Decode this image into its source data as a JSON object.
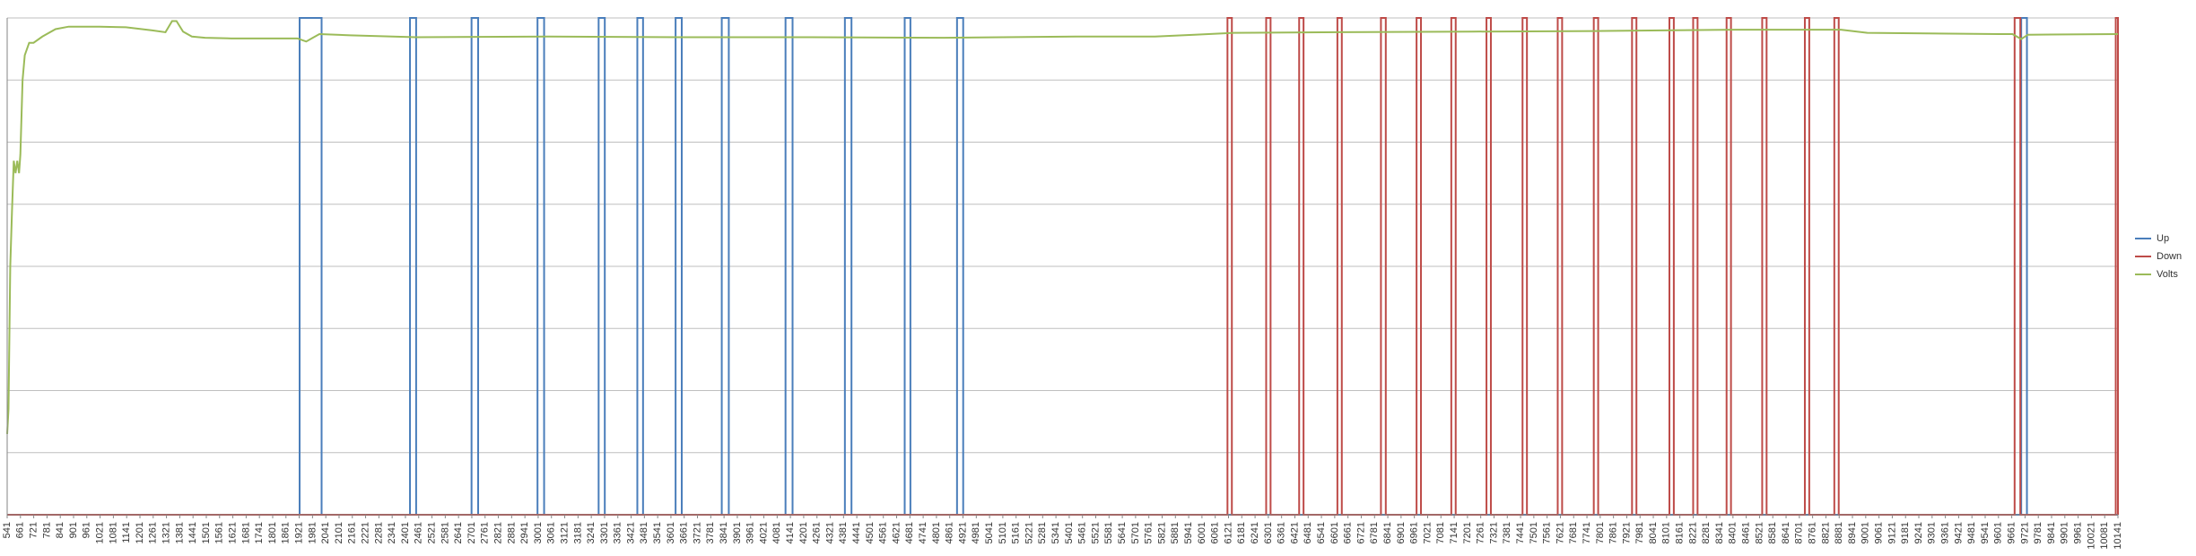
{
  "chart_data": {
    "type": "line",
    "title": "",
    "xlabel": "",
    "ylabel": "",
    "ylim": [
      0,
      8
    ],
    "y_gridlines": 8,
    "grid": true,
    "legend_placement": "right",
    "x_tick_labels": [
      "541",
      "661",
      "721",
      "781",
      "841",
      "901",
      "961",
      "1021",
      "1081",
      "1141",
      "1201",
      "1261",
      "1321",
      "1381",
      "1441",
      "1501",
      "1561",
      "1621",
      "1681",
      "1741",
      "1801",
      "1861",
      "1921",
      "1981",
      "2041",
      "2101",
      "2161",
      "2221",
      "2281",
      "2341",
      "2401",
      "2461",
      "2521",
      "2581",
      "2641",
      "2701",
      "2761",
      "2821",
      "2881",
      "2941",
      "3001",
      "3061",
      "3121",
      "3181",
      "3241",
      "3301",
      "3361",
      "3421",
      "3481",
      "3541",
      "3601",
      "3661",
      "3721",
      "3781",
      "3841",
      "3901",
      "3961",
      "4021",
      "4081",
      "4141",
      "4201",
      "4261",
      "4321",
      "4381",
      "4441",
      "4501",
      "4561",
      "4621",
      "4681",
      "4741",
      "4801",
      "4861",
      "4921",
      "4981",
      "5041",
      "5101",
      "5161",
      "5221",
      "5281",
      "5341",
      "5401",
      "5461",
      "5521",
      "5581",
      "5641",
      "5701",
      "5761",
      "5821",
      "5881",
      "5941",
      "6001",
      "6061",
      "6121",
      "6181",
      "6241",
      "6301",
      "6361",
      "6421",
      "6481",
      "6541",
      "6601",
      "6661",
      "6721",
      "6781",
      "6841",
      "6901",
      "6961",
      "7021",
      "7081",
      "7141",
      "7201",
      "7261",
      "7321",
      "7381",
      "7441",
      "7501",
      "7561",
      "7621",
      "7681",
      "7741",
      "7801",
      "7861",
      "7921",
      "7981",
      "8041",
      "8101",
      "8161",
      "8221",
      "8281",
      "8341",
      "8401",
      "8461",
      "8521",
      "8581",
      "8641",
      "8701",
      "8761",
      "8821",
      "8881",
      "8941",
      "9001",
      "9061",
      "9121",
      "9181",
      "9241",
      "9301",
      "9361",
      "9421",
      "9481",
      "9541",
      "9601",
      "9661",
      "9721",
      "9781",
      "9841",
      "9901",
      "9961",
      "10021",
      "10081",
      "10141"
    ],
    "series": [
      {
        "name": "Up",
        "color": "#4a7ebb",
        "pulses": [
          [
            1871,
            1971
          ],
          [
            2373,
            2401
          ],
          [
            2653,
            2683
          ],
          [
            2953,
            2983
          ],
          [
            3231,
            3259
          ],
          [
            3407,
            3433
          ],
          [
            3581,
            3609
          ],
          [
            3791,
            3823
          ],
          [
            4081,
            4113
          ],
          [
            4351,
            4381
          ],
          [
            4623,
            4649
          ],
          [
            4861,
            4889
          ],
          [
            9701,
            9727
          ]
        ],
        "x_range": [
          541,
          10141
        ],
        "high": 8,
        "low": 0
      },
      {
        "name": "Down",
        "color": "#be4b48",
        "pulses": [
          [
            6091,
            6111
          ],
          [
            6267,
            6287
          ],
          [
            6417,
            6437
          ],
          [
            6591,
            6611
          ],
          [
            6789,
            6811
          ],
          [
            6951,
            6971
          ],
          [
            7109,
            7129
          ],
          [
            7269,
            7289
          ],
          [
            7433,
            7453
          ],
          [
            7593,
            7613
          ],
          [
            7757,
            7777
          ],
          [
            7931,
            7951
          ],
          [
            8101,
            8121
          ],
          [
            8209,
            8229
          ],
          [
            8361,
            8381
          ],
          [
            8523,
            8543
          ],
          [
            8717,
            8737
          ],
          [
            8851,
            8871
          ],
          [
            9671,
            9697
          ],
          [
            10131,
            10141
          ]
        ],
        "x_range": [
          541,
          10141
        ],
        "high": 8,
        "low": 0
      },
      {
        "name": "Volts",
        "color": "#9bbb59",
        "points": [
          [
            541,
            1.3
          ],
          [
            547,
            1.7
          ],
          [
            555,
            4.0
          ],
          [
            563,
            4.9
          ],
          [
            571,
            5.7
          ],
          [
            579,
            5.5
          ],
          [
            587,
            5.7
          ],
          [
            595,
            5.5
          ],
          [
            601,
            5.8
          ],
          [
            611,
            7.0
          ],
          [
            621,
            7.4
          ],
          [
            641,
            7.6
          ],
          [
            661,
            7.6
          ],
          [
            701,
            7.7
          ],
          [
            761,
            7.82
          ],
          [
            821,
            7.86
          ],
          [
            961,
            7.86
          ],
          [
            1081,
            7.85
          ],
          [
            1201,
            7.8
          ],
          [
            1261,
            7.77
          ],
          [
            1291,
            7.95
          ],
          [
            1311,
            7.95
          ],
          [
            1341,
            7.78
          ],
          [
            1381,
            7.7
          ],
          [
            1441,
            7.68
          ],
          [
            1561,
            7.67
          ],
          [
            1861,
            7.67
          ],
          [
            1901,
            7.62
          ],
          [
            1931,
            7.68
          ],
          [
            1961,
            7.74
          ],
          [
            2101,
            7.72
          ],
          [
            2401,
            7.69
          ],
          [
            3001,
            7.7
          ],
          [
            3601,
            7.69
          ],
          [
            4201,
            7.69
          ],
          [
            4801,
            7.68
          ],
          [
            5401,
            7.7
          ],
          [
            5761,
            7.7
          ],
          [
            5941,
            7.73
          ],
          [
            6121,
            7.76
          ],
          [
            6601,
            7.77
          ],
          [
            7201,
            7.78
          ],
          [
            7801,
            7.79
          ],
          [
            8401,
            7.81
          ],
          [
            8881,
            7.81
          ],
          [
            9001,
            7.76
          ],
          [
            9601,
            7.74
          ],
          [
            9661,
            7.74
          ],
          [
            9701,
            7.66
          ],
          [
            9731,
            7.73
          ],
          [
            10141,
            7.74
          ]
        ]
      }
    ]
  }
}
